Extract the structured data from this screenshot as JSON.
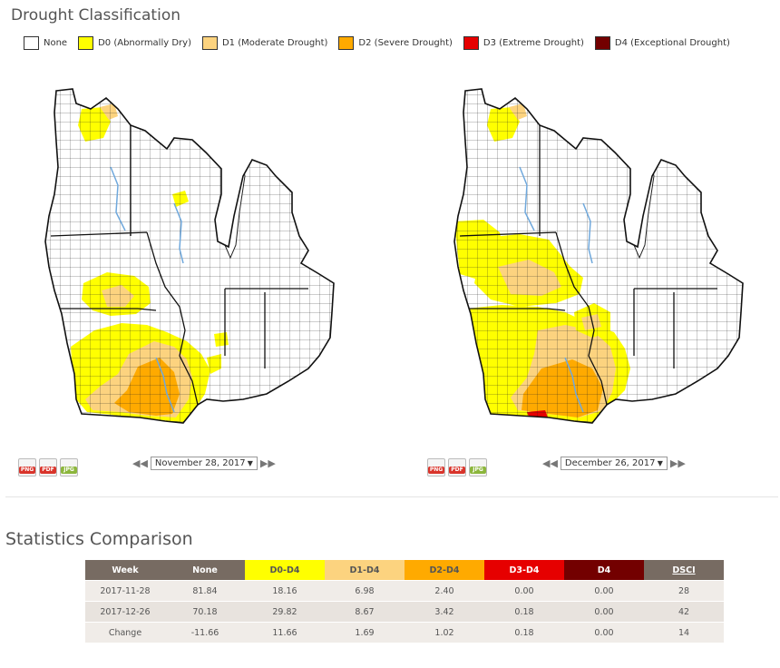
{
  "header": {
    "title": "Drought Classification"
  },
  "legend": [
    {
      "label": "None",
      "color": "#ffffff"
    },
    {
      "label": "D0 (Abnormally Dry)",
      "color": "#ffff00"
    },
    {
      "label": "D1 (Moderate Drought)",
      "color": "#fcd37f"
    },
    {
      "label": "D2 (Severe Drought)",
      "color": "#ffaa00"
    },
    {
      "label": "D3 (Extreme Drought)",
      "color": "#e60000"
    },
    {
      "label": "D4 (Exceptional Drought)",
      "color": "#730000"
    }
  ],
  "maps": {
    "left": {
      "date": "November 28, 2017",
      "exports": [
        "PNG",
        "PDF",
        "JPG"
      ]
    },
    "right": {
      "date": "December 26, 2017",
      "exports": [
        "PNG",
        "PDF",
        "JPG"
      ]
    }
  },
  "stats": {
    "title": "Statistics Comparison",
    "columns": [
      {
        "label": "Week",
        "bg": "#776b62",
        "fg": "#ffffff"
      },
      {
        "label": "None",
        "bg": "#776b62",
        "fg": "#ffffff"
      },
      {
        "label": "D0-D4",
        "bg": "#ffff00",
        "fg": "#555555"
      },
      {
        "label": "D1-D4",
        "bg": "#fcd37f",
        "fg": "#555555"
      },
      {
        "label": "D2-D4",
        "bg": "#ffaa00",
        "fg": "#555555"
      },
      {
        "label": "D3-D4",
        "bg": "#e60000",
        "fg": "#ffffff"
      },
      {
        "label": "D4",
        "bg": "#730000",
        "fg": "#ffffff"
      },
      {
        "label": "DSCI",
        "bg": "#776b62",
        "fg": "#ffffff"
      }
    ],
    "rows": [
      [
        "2017-11-28",
        "81.84",
        "18.16",
        "6.98",
        "2.40",
        "0.00",
        "0.00",
        "28"
      ],
      [
        "2017-12-26",
        "70.18",
        "29.82",
        "8.67",
        "3.42",
        "0.18",
        "0.00",
        "42"
      ],
      [
        "Change",
        "-11.66",
        "11.66",
        "1.69",
        "1.02",
        "0.18",
        "0.00",
        "14"
      ]
    ]
  },
  "colors": {
    "d0": "#ffff00",
    "d1": "#fcd37f",
    "d2": "#ffaa00",
    "d3": "#e60000",
    "d4": "#730000",
    "water": "#6fa8dc",
    "header_bg": "#776b62"
  }
}
